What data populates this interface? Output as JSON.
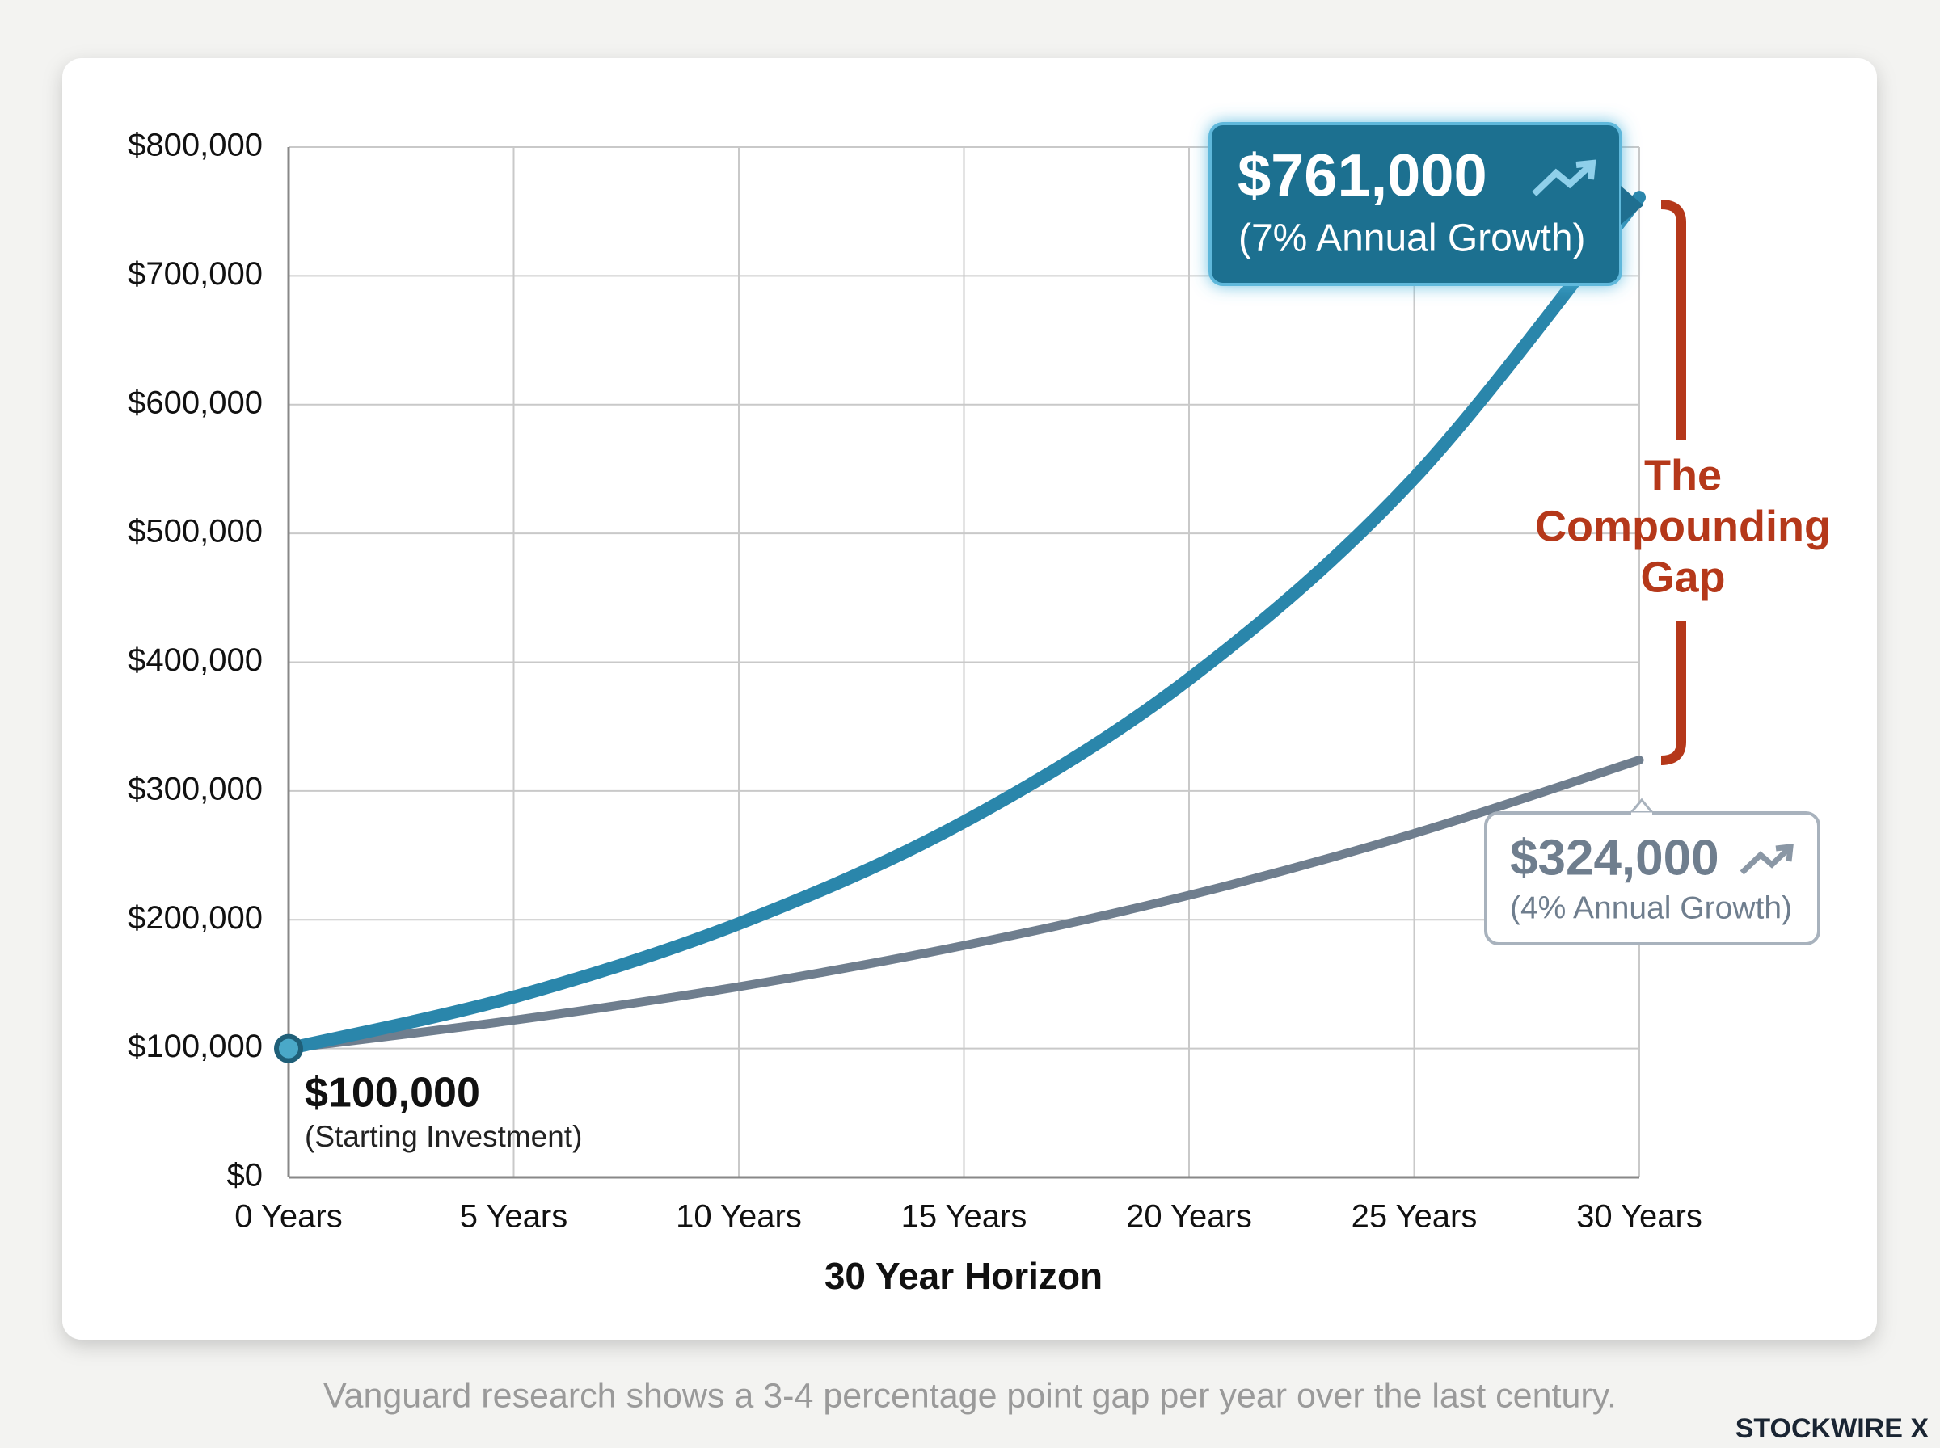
{
  "chart_data": {
    "type": "line",
    "x_label": "30 Year Horizon",
    "x": [
      0,
      5,
      10,
      15,
      20,
      25,
      30
    ],
    "series": [
      {
        "name": "(7% Annual Growth)",
        "color": "#2a86ab",
        "values": [
          100000,
          140000,
          197000,
          276000,
          387000,
          543000,
          761000
        ],
        "value_labels": [
          null,
          null,
          null,
          null,
          null,
          null,
          "$761,000"
        ]
      },
      {
        "name": "(4% Annual Growth)",
        "color": "#6f7e8e",
        "values": [
          100000,
          122000,
          148000,
          180000,
          219000,
          267000,
          324000
        ],
        "value_labels": [
          null,
          null,
          null,
          null,
          null,
          null,
          "$324,000"
        ]
      }
    ],
    "xlim": [
      0,
      30
    ],
    "xticks": [
      {
        "value": 0,
        "label": "0 Years"
      },
      {
        "value": 5,
        "label": "5 Years"
      },
      {
        "value": 10,
        "label": "10 Years"
      },
      {
        "value": 15,
        "label": "15 Years"
      },
      {
        "value": 20,
        "label": "20 Years"
      },
      {
        "value": 25,
        "label": "25 Years"
      },
      {
        "value": 30,
        "label": "30 Years"
      }
    ],
    "ylim": [
      0,
      800000
    ],
    "yticks": [
      {
        "value": 0,
        "label": "$0"
      },
      {
        "value": 100000,
        "label": "$100,000"
      },
      {
        "value": 200000,
        "label": "$200,000"
      },
      {
        "value": 300000,
        "label": "$300,000"
      },
      {
        "value": 400000,
        "label": "$400,000"
      },
      {
        "value": 500000,
        "label": "$500,000"
      },
      {
        "value": 600000,
        "label": "$600,000"
      },
      {
        "value": 700000,
        "label": "$700,000"
      },
      {
        "value": 800000,
        "label": "$800,000"
      }
    ],
    "grid": true,
    "annotations": {
      "start_value": "$100,000",
      "start_note": "(Starting Investment)",
      "gap_label": [
        "The",
        "Compounding",
        "Gap"
      ],
      "source": "Vanguard research shows a 3-4 percentage point gap per year over the last century.",
      "brand": "STOCKWIRE X"
    }
  }
}
